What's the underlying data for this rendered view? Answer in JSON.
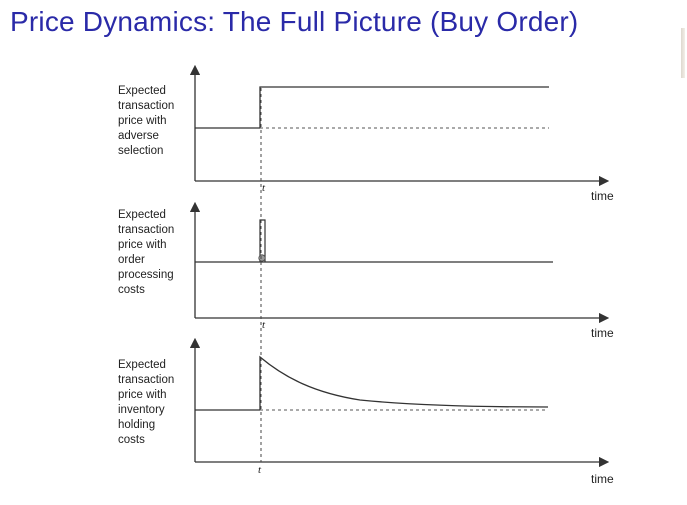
{
  "slide": {
    "title": "Price Dynamics: The Full Picture (Buy Order)"
  },
  "panels": [
    {
      "id": "adverse-selection",
      "ylabel_lines": [
        "Expected",
        "transaction",
        "price with",
        "adverse",
        "selection"
      ],
      "t_label": "t",
      "xlabel": "time"
    },
    {
      "id": "order-processing",
      "ylabel_lines": [
        "Expected",
        "transaction",
        "price with",
        "order",
        "processing",
        "costs"
      ],
      "t_label": "t",
      "xlabel": "time"
    },
    {
      "id": "inventory-holding",
      "ylabel_lines": [
        "Expected",
        "transaction",
        "price with",
        "inventory",
        "holding",
        "costs"
      ],
      "t_label": "t",
      "xlabel": "time"
    }
  ],
  "colors": {
    "title": "#2a2aa8",
    "lines": "#333333"
  }
}
